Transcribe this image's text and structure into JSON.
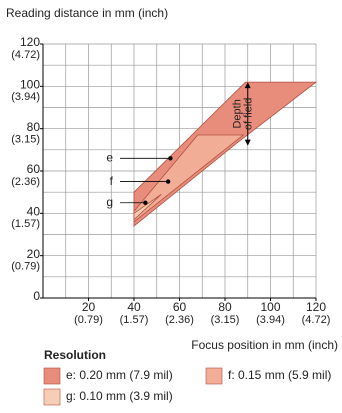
{
  "chart_data": {
    "type": "area",
    "y_title": "Reading distance in mm (inch)",
    "x_title": "Focus position in mm (inch)",
    "xlim": [
      0,
      120
    ],
    "ylim": [
      0,
      120
    ],
    "xticks": [
      {
        "value": 20,
        "label": "20",
        "label2": "(0.79)"
      },
      {
        "value": 40,
        "label": "40",
        "label2": "(1.57)"
      },
      {
        "value": 60,
        "label": "60",
        "label2": "(2.36)"
      },
      {
        "value": 80,
        "label": "80",
        "label2": "(3.15)"
      },
      {
        "value": 100,
        "label": "100",
        "label2": "(3.94)"
      },
      {
        "value": 120,
        "label": "120",
        "label2": "(4.72)"
      }
    ],
    "yticks": [
      {
        "value": 0,
        "label": "0"
      },
      {
        "value": 20,
        "label": "20",
        "label2": "(0.79)"
      },
      {
        "value": 40,
        "label": "40",
        "label2": "(1.57)"
      },
      {
        "value": 60,
        "label": "60",
        "label2": "(2.36)"
      },
      {
        "value": 80,
        "label": "80",
        "label2": "(3.15)"
      },
      {
        "value": 100,
        "label": "100",
        "label2": "(3.94)"
      },
      {
        "value": 120,
        "label": "120",
        "label2": "(4.72)"
      }
    ],
    "grid_step": 10,
    "series": [
      {
        "name": "e",
        "legend": "e: 0.20 mm (7.9 mil)",
        "color": "#e88c7c",
        "x": [
          40,
          89,
          120,
          85,
          40
        ],
        "y": [
          50,
          102,
          102,
          73,
          34
        ],
        "point": [
          56,
          66
        ]
      },
      {
        "name": "f",
        "legend": "f: 0.15 mm (5.9 mil)",
        "color": "#f2ad96",
        "x": [
          40,
          68,
          88,
          40
        ],
        "y": [
          41,
          77,
          77,
          36
        ],
        "point": [
          55,
          55
        ]
      },
      {
        "name": "g",
        "legend": "g: 0.10 mm (3.9 mil)",
        "color": "#f8cdb5",
        "x": [
          40,
          52,
          40
        ],
        "y": [
          40,
          49,
          37
        ],
        "point": [
          45,
          45
        ]
      }
    ],
    "annotation": {
      "text": [
        "Depth",
        "of field"
      ],
      "x": 90,
      "y_from": 102,
      "y_to": 72
    },
    "legend_title": "Resolution"
  }
}
